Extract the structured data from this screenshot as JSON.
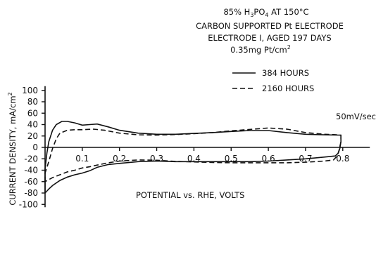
{
  "chart_data": {
    "type": "line",
    "title_lines": [
      "85% H3PO4 AT 150°C",
      "CARBON SUPPORTED Pt ELECTRODE",
      "ELECTRODE I, AGED 197 DAYS",
      "0.35mg Pt/cm2"
    ],
    "xlabel": "POTENTIAL vs. RHE, VOLTS",
    "ylabel": "CURRENT DENSITY, mA/cm2",
    "annotation": "50mV/sec",
    "xlim": [
      0,
      0.85
    ],
    "ylim": [
      -100,
      100
    ],
    "x_ticks": [
      0.1,
      0.2,
      0.3,
      0.4,
      0.5,
      0.6,
      0.7,
      0.8
    ],
    "y_ticks": [
      100,
      80,
      60,
      40,
      20,
      0,
      -20,
      -40,
      -60,
      -80,
      -100
    ],
    "series": [
      {
        "name": "384 HOURS",
        "style": "solid",
        "points": [
          [
            0.0,
            -80
          ],
          [
            0.0,
            -38
          ],
          [
            0.005,
            -10
          ],
          [
            0.01,
            10
          ],
          [
            0.02,
            30
          ],
          [
            0.03,
            40
          ],
          [
            0.045,
            45.5
          ],
          [
            0.06,
            45.5
          ],
          [
            0.08,
            43
          ],
          [
            0.1,
            39
          ],
          [
            0.12,
            40
          ],
          [
            0.14,
            41
          ],
          [
            0.17,
            36
          ],
          [
            0.2,
            30
          ],
          [
            0.25,
            25
          ],
          [
            0.3,
            23
          ],
          [
            0.35,
            23
          ],
          [
            0.4,
            24.5
          ],
          [
            0.45,
            26
          ],
          [
            0.5,
            28
          ],
          [
            0.55,
            29.5
          ],
          [
            0.6,
            29.5
          ],
          [
            0.65,
            26
          ],
          [
            0.7,
            23
          ],
          [
            0.75,
            22
          ],
          [
            0.79,
            21.5
          ],
          [
            0.795,
            21.5
          ],
          [
            0.795,
            10
          ],
          [
            0.792,
            -2
          ],
          [
            0.788,
            -10
          ],
          [
            0.78,
            -15
          ],
          [
            0.75,
            -17
          ],
          [
            0.7,
            -20
          ],
          [
            0.65,
            -22
          ],
          [
            0.6,
            -24
          ],
          [
            0.55,
            -25
          ],
          [
            0.5,
            -25
          ],
          [
            0.45,
            -25
          ],
          [
            0.4,
            -25
          ],
          [
            0.35,
            -25
          ],
          [
            0.3,
            -24
          ],
          [
            0.25,
            -25
          ],
          [
            0.2,
            -28
          ],
          [
            0.17,
            -30
          ],
          [
            0.14,
            -35
          ],
          [
            0.12,
            -41
          ],
          [
            0.1,
            -45
          ],
          [
            0.08,
            -48
          ],
          [
            0.06,
            -52
          ],
          [
            0.04,
            -58
          ],
          [
            0.02,
            -67
          ],
          [
            0.01,
            -73
          ],
          [
            0.0,
            -80
          ]
        ]
      },
      {
        "name": "2160 HOURS",
        "style": "dashed",
        "points": [
          [
            0.0,
            -60
          ],
          [
            0.0,
            -45
          ],
          [
            0.01,
            -25
          ],
          [
            0.02,
            -2
          ],
          [
            0.03,
            15
          ],
          [
            0.04,
            25
          ],
          [
            0.06,
            30
          ],
          [
            0.08,
            31
          ],
          [
            0.1,
            31
          ],
          [
            0.13,
            32
          ],
          [
            0.16,
            30
          ],
          [
            0.2,
            25
          ],
          [
            0.25,
            22
          ],
          [
            0.3,
            21.5
          ],
          [
            0.35,
            22.5
          ],
          [
            0.4,
            24
          ],
          [
            0.45,
            26
          ],
          [
            0.5,
            29
          ],
          [
            0.55,
            31.5
          ],
          [
            0.6,
            34
          ],
          [
            0.65,
            32
          ],
          [
            0.7,
            26
          ],
          [
            0.75,
            23
          ],
          [
            0.79,
            22
          ],
          [
            0.795,
            21
          ],
          [
            0.795,
            10
          ],
          [
            0.79,
            -5
          ],
          [
            0.785,
            -15
          ],
          [
            0.775,
            -22
          ],
          [
            0.75,
            -24
          ],
          [
            0.7,
            -26
          ],
          [
            0.65,
            -27
          ],
          [
            0.6,
            -27
          ],
          [
            0.55,
            -27
          ],
          [
            0.5,
            -27
          ],
          [
            0.45,
            -26.5
          ],
          [
            0.4,
            -25.5
          ],
          [
            0.35,
            -24.5
          ],
          [
            0.3,
            -22.5
          ],
          [
            0.25,
            -22
          ],
          [
            0.2,
            -24
          ],
          [
            0.17,
            -27
          ],
          [
            0.14,
            -31
          ],
          [
            0.12,
            -34
          ],
          [
            0.1,
            -36
          ],
          [
            0.08,
            -40
          ],
          [
            0.06,
            -43
          ],
          [
            0.04,
            -48
          ],
          [
            0.02,
            -53
          ],
          [
            0.0,
            -60
          ]
        ]
      }
    ]
  }
}
